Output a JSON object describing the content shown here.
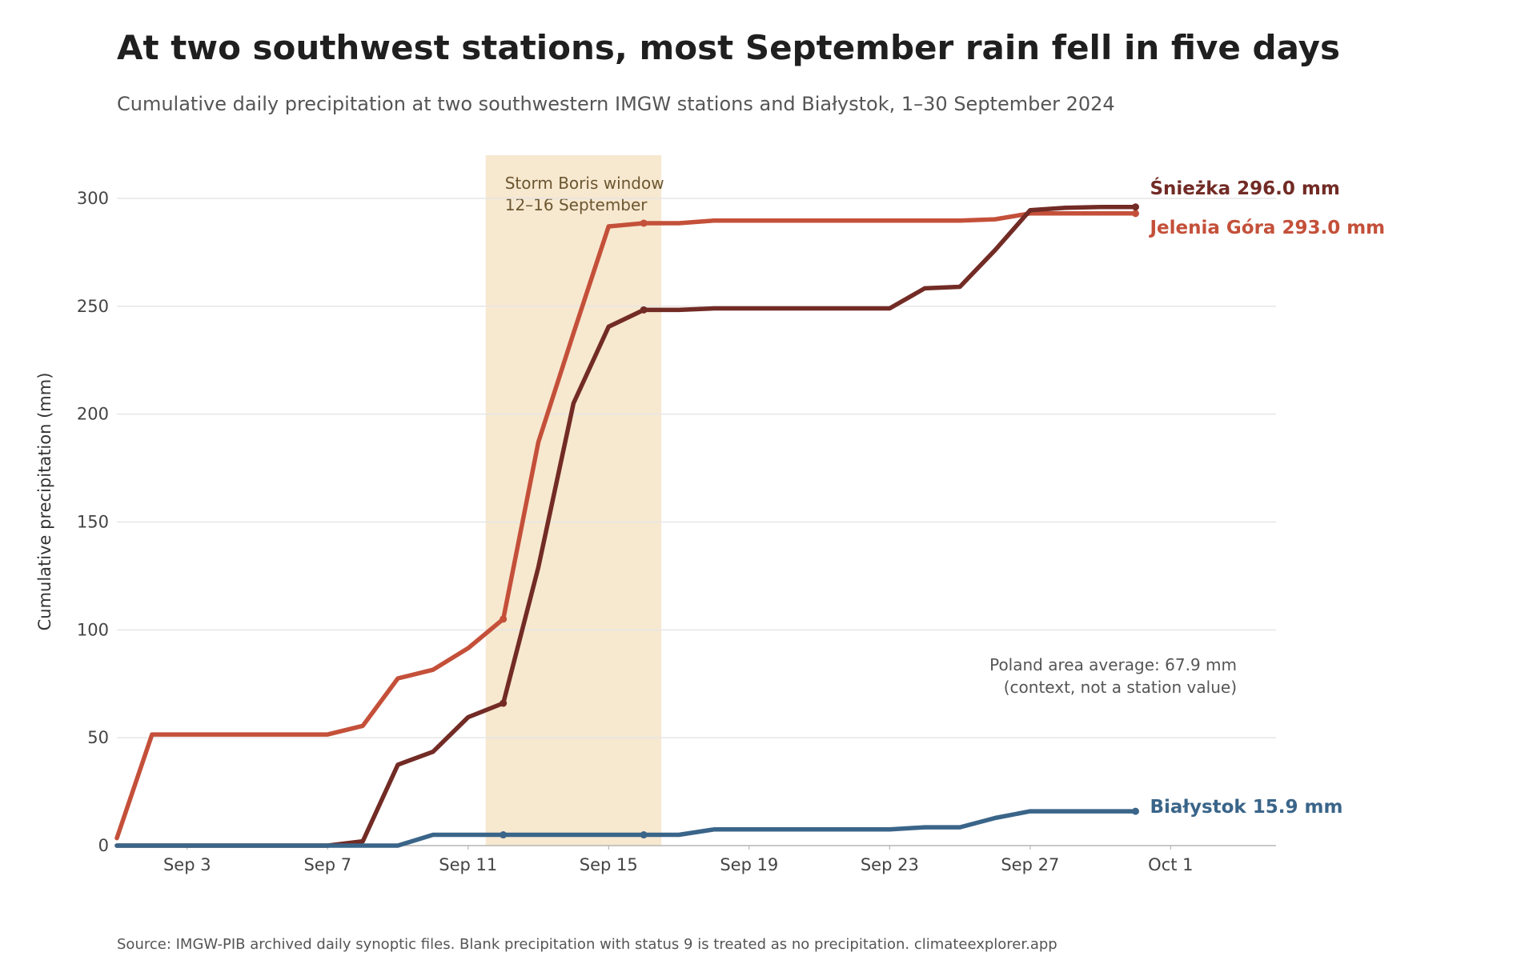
{
  "chart_data": {
    "type": "line",
    "title": "At two southwest stations, most September rain fell in five days",
    "subtitle": "Cumulative daily precipitation at two southwestern IMGW stations and Białystok, 1–30 September 2024",
    "ylabel": "Cumulative precipitation (mm)",
    "xlabel": "",
    "ylim": [
      0,
      320
    ],
    "xlim": [
      1,
      34
    ],
    "yticks": [
      0,
      50,
      100,
      150,
      200,
      250,
      300
    ],
    "xticks": [
      {
        "day": 3,
        "label": "Sep 3"
      },
      {
        "day": 7,
        "label": "Sep 7"
      },
      {
        "day": 11,
        "label": "Sep 11"
      },
      {
        "day": 15,
        "label": "Sep 15"
      },
      {
        "day": 19,
        "label": "Sep 19"
      },
      {
        "day": 23,
        "label": "Sep 23"
      },
      {
        "day": 27,
        "label": "Sep 27"
      },
      {
        "day": 31,
        "label": "Oct 1"
      }
    ],
    "grid": "horizontal",
    "highlight_band": {
      "start_day": 11.5,
      "end_day": 16.5,
      "label_line1": "Storm Boris window",
      "label_line2": "12–16 September",
      "color": "#f7e8d0"
    },
    "x": [
      1,
      2,
      3,
      4,
      5,
      6,
      7,
      8,
      9,
      10,
      11,
      12,
      13,
      14,
      15,
      16,
      17,
      18,
      19,
      20,
      21,
      22,
      23,
      24,
      25,
      26,
      27,
      28,
      29,
      30
    ],
    "series": [
      {
        "name": "Śnieżka",
        "end_label": "Śnieżka  296.0 mm",
        "color": "#722b25",
        "values": [
          0,
          0,
          0,
          0,
          0,
          0,
          0,
          2,
          37.5,
          43.5,
          59.5,
          66,
          129,
          205,
          240.5,
          248.3,
          248.3,
          249,
          249,
          249,
          249,
          249,
          249,
          258.3,
          259,
          276,
          294.5,
          295.6,
          296,
          296
        ],
        "markers_at": [
          12,
          16,
          30
        ]
      },
      {
        "name": "Jelenia Góra",
        "end_label": "Jelenia Góra  293.0 mm",
        "color": "#c4503a",
        "values": [
          3.5,
          51.5,
          51.5,
          51.5,
          51.5,
          51.5,
          51.5,
          55.5,
          77.5,
          81.5,
          91.5,
          105,
          187,
          237.5,
          287,
          288.5,
          288.5,
          289.7,
          289.7,
          289.7,
          289.7,
          289.7,
          289.7,
          289.7,
          289.7,
          290.3,
          293,
          293,
          293,
          293
        ],
        "markers_at": [
          12,
          16,
          30
        ]
      },
      {
        "name": "Białystok",
        "end_label": "Białystok  15.9 mm",
        "color": "#3a6589",
        "values": [
          0,
          0,
          0,
          0,
          0,
          0,
          0,
          0,
          0,
          5,
          5,
          5,
          5,
          5,
          5,
          5,
          5,
          7.5,
          7.5,
          7.5,
          7.5,
          7.5,
          7.5,
          8.5,
          8.5,
          12.8,
          15.9,
          15.9,
          15.9,
          15.9
        ],
        "markers_at": [
          12,
          16,
          30
        ]
      }
    ],
    "annotation": {
      "line1": "Poland area average: 67.9 mm",
      "line2": "(context, not a station value)"
    }
  },
  "source": "Source: IMGW-PIB archived daily synoptic files. Blank precipitation with status 9 is treated as no precipitation.  climateexplorer.app"
}
